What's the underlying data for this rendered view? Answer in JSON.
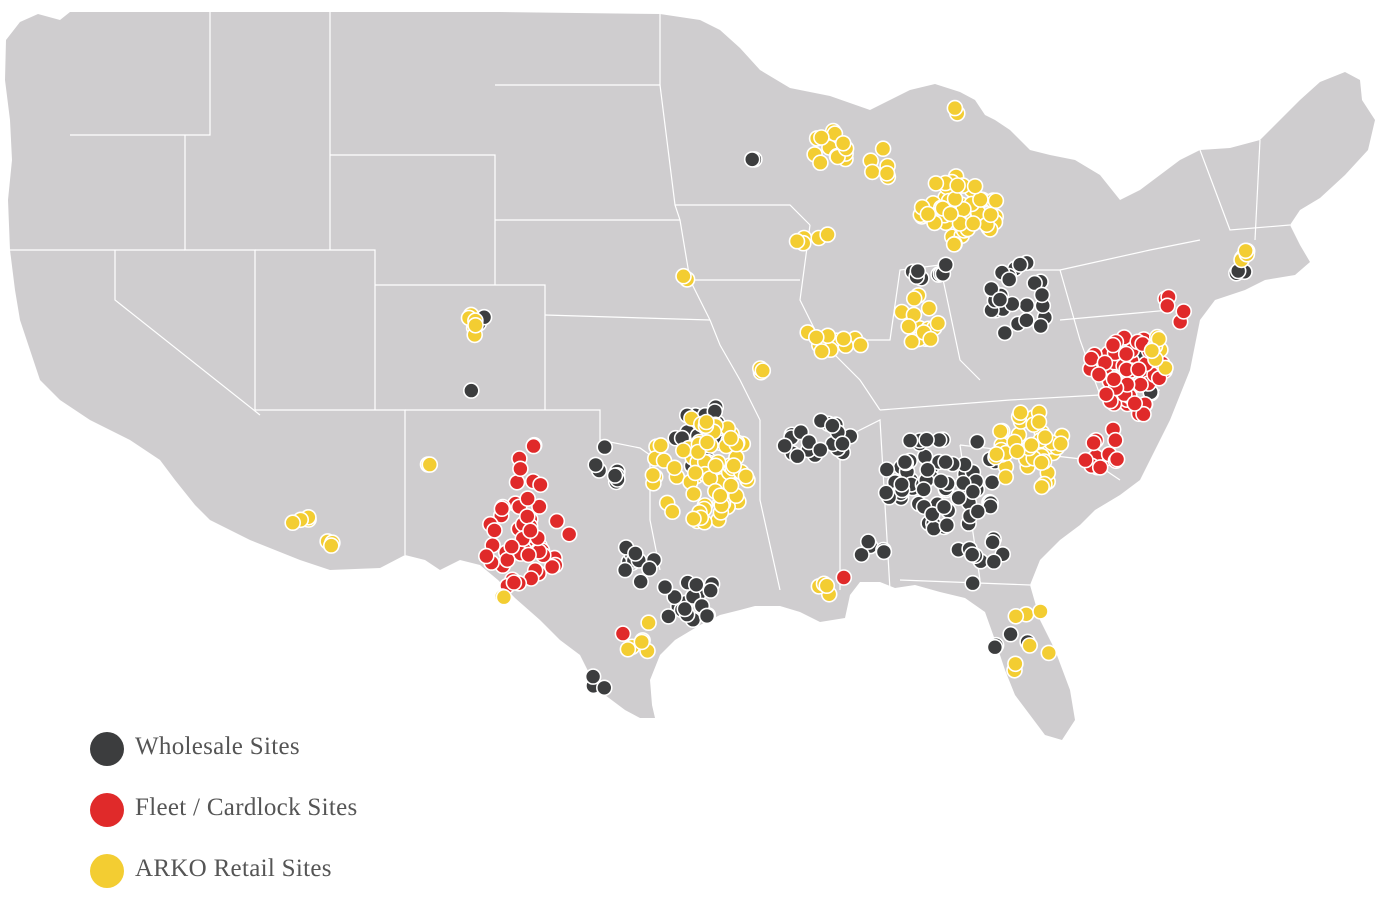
{
  "map": {
    "land_color": "#cfcdcf",
    "border_color": "#ffffff",
    "region": "Contiguous United States"
  },
  "categories": [
    {
      "key": "wholesale",
      "label": "Wholesale Sites",
      "color": "#3c3d3e"
    },
    {
      "key": "fleet",
      "label": "Fleet / Cardlock Sites",
      "color": "#e02a2a"
    },
    {
      "key": "retail",
      "label": "ARKO Retail Sites",
      "color": "#f3cd32"
    }
  ],
  "legend": {
    "items": [
      {
        "label": "Wholesale Sites",
        "color": "#3c3d3e"
      },
      {
        "label": "Fleet / Cardlock Sites",
        "color": "#e02a2a"
      },
      {
        "label": "ARKO Retail Sites",
        "color": "#f3cd32"
      }
    ]
  }
}
